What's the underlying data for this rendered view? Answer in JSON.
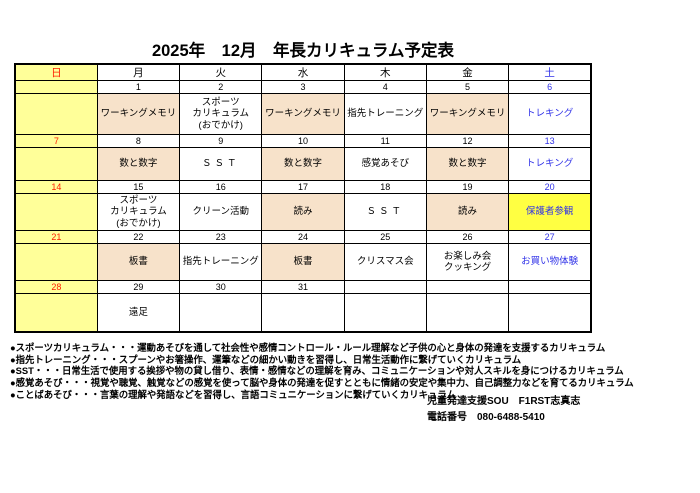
{
  "title": "2025年　12月　年長カリキュラム予定表",
  "colors": {
    "yellow": "#FFFF99",
    "bright": "#FFFF42",
    "peach": "#F7E2CA",
    "red": "#FF1E00",
    "blue": "#3032E8",
    "border": "#000000"
  },
  "calendar": {
    "day_headers": [
      {
        "label": "日",
        "bg": "yellow",
        "color": "red"
      },
      {
        "label": "月",
        "bg": "white",
        "color": "black"
      },
      {
        "label": "火",
        "bg": "white",
        "color": "black"
      },
      {
        "label": "水",
        "bg": "white",
        "color": "black"
      },
      {
        "label": "木",
        "bg": "white",
        "color": "black"
      },
      {
        "label": "金",
        "bg": "white",
        "color": "black"
      },
      {
        "label": "土",
        "bg": "white",
        "color": "blue"
      }
    ],
    "weeks": [
      {
        "dates": [
          "",
          "1",
          "2",
          "3",
          "4",
          "5",
          "6"
        ],
        "activities": [
          {
            "text": "",
            "bg": "yellow",
            "color": "black"
          },
          {
            "text": "ワーキングメモリ",
            "bg": "peach",
            "color": "black"
          },
          {
            "text": "スポーツ\nカリキュラム\n(おでかけ)",
            "bg": "white",
            "color": "black"
          },
          {
            "text": "ワーキングメモリ",
            "bg": "peach",
            "color": "black"
          },
          {
            "text": "指先トレーニング",
            "bg": "white",
            "color": "black"
          },
          {
            "text": "ワーキングメモリ",
            "bg": "peach",
            "color": "black"
          },
          {
            "text": "トレキング",
            "bg": "white",
            "color": "blue"
          }
        ]
      },
      {
        "dates": [
          "7",
          "8",
          "9",
          "10",
          "11",
          "12",
          "13"
        ],
        "activities": [
          {
            "text": "",
            "bg": "yellow",
            "color": "black"
          },
          {
            "text": "数と数字",
            "bg": "peach",
            "color": "black"
          },
          {
            "text": "ＳＳＴ",
            "bg": "white",
            "color": "black"
          },
          {
            "text": "数と数字",
            "bg": "peach",
            "color": "black"
          },
          {
            "text": "感覚あそび",
            "bg": "white",
            "color": "black"
          },
          {
            "text": "数と数字",
            "bg": "peach",
            "color": "black"
          },
          {
            "text": "トレキング",
            "bg": "white",
            "color": "blue"
          }
        ]
      },
      {
        "dates": [
          "14",
          "15",
          "16",
          "17",
          "18",
          "19",
          "20"
        ],
        "activities": [
          {
            "text": "",
            "bg": "yellow",
            "color": "black"
          },
          {
            "text": "スポーツ\nカリキュラム\n(おでかけ)",
            "bg": "white",
            "color": "black"
          },
          {
            "text": "クリーン活動",
            "bg": "white",
            "color": "black"
          },
          {
            "text": "読み",
            "bg": "peach",
            "color": "black"
          },
          {
            "text": "ＳＳＴ",
            "bg": "white",
            "color": "black"
          },
          {
            "text": "読み",
            "bg": "peach",
            "color": "black"
          },
          {
            "text": "保護者参観",
            "bg": "bright",
            "color": "blue"
          }
        ]
      },
      {
        "dates": [
          "21",
          "22",
          "23",
          "24",
          "25",
          "26",
          "27"
        ],
        "activities": [
          {
            "text": "",
            "bg": "yellow",
            "color": "black"
          },
          {
            "text": "板書",
            "bg": "peach",
            "color": "black"
          },
          {
            "text": "指先トレーニング",
            "bg": "white",
            "color": "black"
          },
          {
            "text": "板書",
            "bg": "peach",
            "color": "black"
          },
          {
            "text": "クリスマス会",
            "bg": "white",
            "color": "black"
          },
          {
            "text": "お楽しみ会\nクッキング",
            "bg": "white",
            "color": "black"
          },
          {
            "text": "お買い物体験",
            "bg": "white",
            "color": "blue"
          }
        ]
      },
      {
        "dates": [
          "28",
          "29",
          "30",
          "31",
          "",
          "",
          ""
        ],
        "activities": [
          {
            "text": "",
            "bg": "yellow",
            "color": "black"
          },
          {
            "text": "遠足",
            "bg": "white",
            "color": "black"
          },
          {
            "text": "",
            "bg": "white",
            "color": "black"
          },
          {
            "text": "",
            "bg": "white",
            "color": "black"
          },
          {
            "text": "",
            "bg": "white",
            "color": "black"
          },
          {
            "text": "",
            "bg": "white",
            "color": "black"
          },
          {
            "text": "",
            "bg": "white",
            "color": "black"
          }
        ]
      }
    ]
  },
  "notes": [
    "●スポーツカリキュラム・・・運動あそびを通して社会性や感情コントロール・ルール理解など子供の心と身体の発達を支援するカリキュラム",
    "●指先トレーニング・・・スプーンやお箸操作、運筆などの細かい動きを習得し、日常生活動作に繋げていくカリキュラム",
    "●SST・・・日常生活で使用する挨拶や物の貸し借り、表情・感情などの理解を育み、コミュニケーションや対人スキルを身につけるカリキュラム",
    "●感覚あそび・・・視覚や聴覚、触覚などの感覚を使って脳や身体の発達を促すとともに情緒の安定や集中力、自己調整力などを育てるカリキュラム",
    "●ことばあそび・・・言葉の理解や発語などを習得し、言語コミュニケーションに繋げていくカリキュラム"
  ],
  "footer": {
    "facility": "児童発達支援SOU　F1RST志真志",
    "phone": "電話番号　080-6488-5410"
  }
}
